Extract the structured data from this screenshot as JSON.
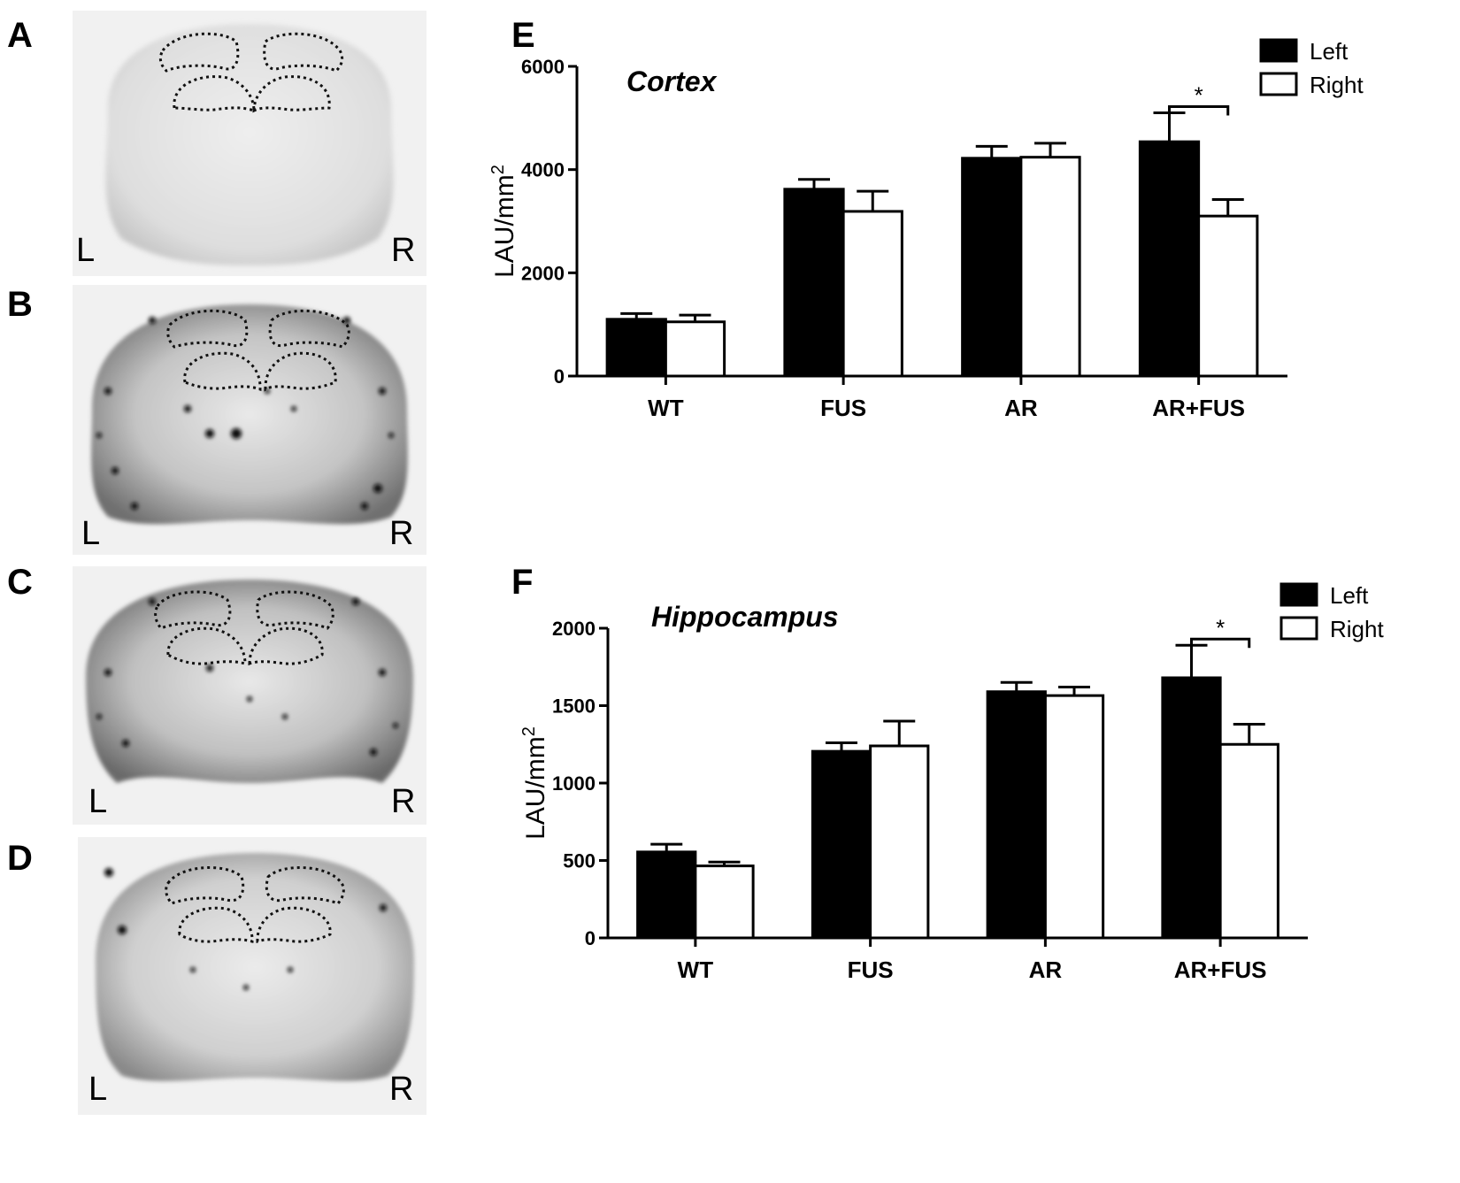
{
  "panels": {
    "A": {
      "letter": "A",
      "left_label": "L",
      "right_label": "R"
    },
    "B": {
      "letter": "B",
      "left_label": "L",
      "right_label": "R"
    },
    "C": {
      "letter": "C",
      "left_label": "L",
      "right_label": "R"
    },
    "D": {
      "letter": "D",
      "left_label": "L",
      "right_label": "R"
    }
  },
  "colors": {
    "left": "#000000",
    "right": "#ffffff",
    "stroke": "#000000"
  },
  "chart_data": [
    {
      "panel": "E",
      "type": "bar",
      "title": "Cortex",
      "xlabel": "",
      "ylabel": "LAU/mm",
      "ylabel_superscript": "2",
      "categories": [
        "WT",
        "FUS",
        "AR",
        "AR+FUS"
      ],
      "ylim": [
        0,
        6000
      ],
      "yticks": [
        0,
        2000,
        4000,
        6000
      ],
      "legend_position": "top-right",
      "series": [
        {
          "name": "Left",
          "values": [
            1100,
            3620,
            4220,
            4540
          ],
          "errors": [
            110,
            190,
            230,
            560
          ]
        },
        {
          "name": "Right",
          "values": [
            1050,
            3190,
            4240,
            3100
          ],
          "errors": [
            130,
            390,
            270,
            320
          ]
        }
      ],
      "significance": {
        "category": "AR+FUS",
        "label": "*"
      }
    },
    {
      "panel": "F",
      "type": "bar",
      "title": "Hippocampus",
      "xlabel": "",
      "ylabel": "LAU/mm",
      "ylabel_superscript": "2",
      "categories": [
        "WT",
        "FUS",
        "AR",
        "AR+FUS"
      ],
      "ylim": [
        0,
        2000
      ],
      "yticks": [
        0,
        500,
        1000,
        1500,
        2000
      ],
      "legend_position": "top-right",
      "series": [
        {
          "name": "Left",
          "values": [
            555,
            1205,
            1590,
            1680
          ],
          "errors": [
            50,
            55,
            60,
            210
          ]
        },
        {
          "name": "Right",
          "values": [
            465,
            1240,
            1565,
            1250
          ],
          "errors": [
            25,
            160,
            55,
            130
          ]
        }
      ],
      "significance": {
        "category": "AR+FUS",
        "label": "*"
      }
    }
  ]
}
